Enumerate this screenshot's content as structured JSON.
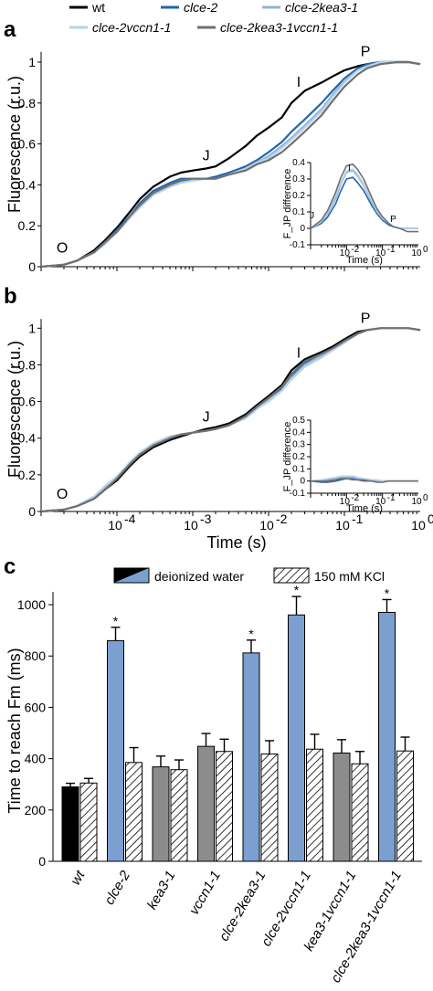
{
  "colors": {
    "wt": "#000000",
    "clce2": "#2166ac",
    "clce2kea3": "#8fb3da",
    "clce2vccn1": "#b9d2ea",
    "clce2kea3vccn1": "#707070",
    "bar_blue": "#7b9fcf",
    "bar_grey": "#8c8c8c",
    "bar_black": "#000000"
  },
  "legend_top": [
    {
      "label": "wt",
      "color_key": "wt",
      "italic": false
    },
    {
      "label": "clce-2",
      "color_key": "clce2",
      "italic": true
    },
    {
      "label": "clce-2kea3-1",
      "color_key": "clce2kea3",
      "italic": true
    },
    {
      "label": "clce-2vccn1-1",
      "color_key": "clce2vccn1",
      "italic": true
    },
    {
      "label": "clce-2kea3-1vccn1-1",
      "color_key": "clce2kea3vccn1",
      "italic": true
    }
  ],
  "panels": {
    "a": "a",
    "b": "b",
    "c": "c"
  },
  "chart_data": [
    {
      "type": "line",
      "panel": "a",
      "xlabel": "",
      "ylabel": "Fluorescence (r.u.)",
      "x_scale": "log",
      "xlim": [
        1e-05,
        1
      ],
      "ylim": [
        0,
        1.05
      ],
      "yticks": [
        "0",
        "0.2",
        "0.4",
        "0.6",
        "0.8",
        "1"
      ],
      "xticks": [],
      "point_labels": [
        {
          "text": "O",
          "x": 1.9e-05,
          "y": 0.07
        },
        {
          "text": "J",
          "x": 0.0015,
          "y": 0.52
        },
        {
          "text": "I",
          "x": 0.025,
          "y": 0.88
        },
        {
          "text": "P",
          "x": 0.19,
          "y": 1.03
        }
      ],
      "x": [
        1e-05,
        2e-05,
        3e-05,
        5e-05,
        7e-05,
        0.0001,
        0.00015,
        0.0002,
        0.0003,
        0.0005,
        0.0007,
        0.001,
        0.0015,
        0.002,
        0.003,
        0.005,
        0.007,
        0.01,
        0.015,
        0.02,
        0.03,
        0.05,
        0.07,
        0.1,
        0.15,
        0.2,
        0.3,
        0.5,
        0.7,
        1
      ],
      "series": [
        {
          "name": "wt",
          "color_key": "wt",
          "values": [
            0.0,
            0.01,
            0.03,
            0.08,
            0.13,
            0.19,
            0.27,
            0.33,
            0.39,
            0.44,
            0.46,
            0.47,
            0.48,
            0.49,
            0.53,
            0.59,
            0.64,
            0.68,
            0.73,
            0.8,
            0.86,
            0.9,
            0.93,
            0.96,
            0.98,
            0.99,
            1.0,
            1.0,
            1.0,
            0.99
          ]
        },
        {
          "name": "clce-2",
          "color_key": "clce2",
          "values": [
            0.0,
            0.01,
            0.03,
            0.07,
            0.12,
            0.18,
            0.25,
            0.31,
            0.37,
            0.41,
            0.43,
            0.43,
            0.43,
            0.44,
            0.46,
            0.49,
            0.52,
            0.56,
            0.61,
            0.66,
            0.72,
            0.8,
            0.86,
            0.92,
            0.97,
            0.99,
            1.0,
            1.0,
            1.0,
            0.99
          ]
        },
        {
          "name": "clce-2kea3-1",
          "color_key": "clce2kea3",
          "values": [
            0.0,
            0.01,
            0.03,
            0.07,
            0.12,
            0.17,
            0.24,
            0.3,
            0.36,
            0.4,
            0.42,
            0.43,
            0.43,
            0.43,
            0.45,
            0.48,
            0.51,
            0.54,
            0.59,
            0.63,
            0.69,
            0.77,
            0.84,
            0.91,
            0.96,
            0.98,
            1.0,
            1.0,
            1.0,
            0.99
          ]
        },
        {
          "name": "clce-2vccn1-1",
          "color_key": "clce2vccn1",
          "values": [
            0.0,
            0.01,
            0.03,
            0.07,
            0.11,
            0.17,
            0.24,
            0.29,
            0.35,
            0.39,
            0.41,
            0.42,
            0.43,
            0.43,
            0.45,
            0.48,
            0.51,
            0.53,
            0.58,
            0.62,
            0.68,
            0.76,
            0.83,
            0.9,
            0.96,
            0.98,
            1.0,
            1.0,
            1.0,
            0.99
          ]
        },
        {
          "name": "clce-2kea3-1vccn1-1",
          "color_key": "clce2kea3vccn1",
          "values": [
            0.0,
            0.01,
            0.03,
            0.07,
            0.12,
            0.17,
            0.25,
            0.3,
            0.36,
            0.4,
            0.42,
            0.43,
            0.43,
            0.43,
            0.45,
            0.47,
            0.5,
            0.52,
            0.56,
            0.6,
            0.66,
            0.74,
            0.81,
            0.88,
            0.94,
            0.97,
            0.99,
            1.0,
            1.0,
            0.99
          ]
        }
      ],
      "inset": {
        "ylabel": "F_JP difference",
        "xlabel": "Time (s)",
        "x_scale": "log",
        "xlim": [
          0.001,
          1
        ],
        "ylim": [
          -0.1,
          0.4
        ],
        "yticks": [
          "-0.1",
          "0",
          "0.1",
          "0.2",
          "0.3",
          "0.4"
        ],
        "xticks": [
          {
            "label": "10",
            "exp": "-2",
            "value": 0.01
          },
          {
            "label": "10",
            "exp": "-1",
            "value": 0.1
          },
          {
            "label": "10",
            "exp": "0",
            "value": 1
          }
        ],
        "point_labels": [
          {
            "text": "J",
            "x": 0.0011,
            "y": 0.06
          },
          {
            "text": "I",
            "x": 0.012,
            "y": 0.35
          },
          {
            "text": "P",
            "x": 0.2,
            "y": 0.04
          }
        ],
        "x": [
          0.001,
          0.002,
          0.003,
          0.005,
          0.007,
          0.01,
          0.015,
          0.02,
          0.03,
          0.05,
          0.07,
          0.1,
          0.15,
          0.2,
          0.3,
          0.5,
          1
        ],
        "series": [
          {
            "name": "clce-2",
            "color_key": "clce2",
            "values": [
              0.0,
              0.03,
              0.07,
              0.15,
              0.23,
              0.3,
              0.31,
              0.28,
              0.23,
              0.14,
              0.09,
              0.05,
              0.02,
              0.01,
              0.0,
              0.0,
              0.0
            ]
          },
          {
            "name": "clce-2kea3-1",
            "color_key": "clce2kea3",
            "values": [
              0.0,
              0.04,
              0.09,
              0.18,
              0.27,
              0.34,
              0.35,
              0.32,
              0.26,
              0.16,
              0.1,
              0.06,
              0.03,
              0.01,
              0.0,
              0.0,
              0.0
            ]
          },
          {
            "name": "clce-2vccn1-1",
            "color_key": "clce2vccn1",
            "values": [
              0.0,
              0.04,
              0.1,
              0.2,
              0.28,
              0.35,
              0.36,
              0.33,
              0.27,
              0.17,
              0.11,
              0.06,
              0.03,
              0.01,
              0.0,
              0.0,
              0.0
            ]
          },
          {
            "name": "clce-2kea3-1vccn1-1",
            "color_key": "clce2kea3vccn1",
            "values": [
              0.0,
              0.05,
              0.11,
              0.22,
              0.31,
              0.38,
              0.39,
              0.36,
              0.3,
              0.19,
              0.12,
              0.07,
              0.03,
              0.01,
              0.0,
              -0.02,
              -0.02
            ]
          }
        ]
      }
    },
    {
      "type": "line",
      "panel": "b",
      "xlabel": "Time (s)",
      "ylabel": "Fluorescence (r.u.)",
      "x_scale": "log",
      "xlim": [
        1e-05,
        1
      ],
      "ylim": [
        0,
        1.05
      ],
      "yticks": [
        "0",
        "0.2",
        "0.4",
        "0.6",
        "0.8",
        "1"
      ],
      "xticks": [
        {
          "label": "10",
          "exp": "-4",
          "value": 0.0001
        },
        {
          "label": "10",
          "exp": "-3",
          "value": 0.001
        },
        {
          "label": "10",
          "exp": "-2",
          "value": 0.01
        },
        {
          "label": "10",
          "exp": "-1",
          "value": 0.1
        },
        {
          "label": "10",
          "exp": "0",
          "value": 1
        }
      ],
      "point_labels": [
        {
          "text": "O",
          "x": 1.9e-05,
          "y": 0.07
        },
        {
          "text": "J",
          "x": 0.0015,
          "y": 0.49
        },
        {
          "text": "I",
          "x": 0.025,
          "y": 0.84
        },
        {
          "text": "P",
          "x": 0.19,
          "y": 1.03
        }
      ],
      "x": [
        1e-05,
        2e-05,
        3e-05,
        5e-05,
        7e-05,
        0.0001,
        0.00015,
        0.0002,
        0.0003,
        0.0005,
        0.0007,
        0.001,
        0.0015,
        0.002,
        0.003,
        0.005,
        0.007,
        0.01,
        0.015,
        0.02,
        0.03,
        0.05,
        0.07,
        0.1,
        0.15,
        0.2,
        0.3,
        0.5,
        0.7,
        1
      ],
      "series": [
        {
          "name": "wt",
          "color_key": "wt",
          "values": [
            0.0,
            0.01,
            0.03,
            0.07,
            0.12,
            0.17,
            0.25,
            0.3,
            0.35,
            0.39,
            0.41,
            0.43,
            0.45,
            0.46,
            0.48,
            0.53,
            0.58,
            0.63,
            0.69,
            0.77,
            0.83,
            0.87,
            0.9,
            0.94,
            0.98,
            0.99,
            1.0,
            1.0,
            1.0,
            0.99
          ]
        },
        {
          "name": "clce-2",
          "color_key": "clce2",
          "values": [
            0.0,
            0.01,
            0.03,
            0.08,
            0.13,
            0.18,
            0.26,
            0.31,
            0.36,
            0.4,
            0.42,
            0.43,
            0.44,
            0.45,
            0.47,
            0.52,
            0.57,
            0.62,
            0.67,
            0.74,
            0.81,
            0.86,
            0.89,
            0.93,
            0.97,
            0.99,
            1.0,
            1.0,
            1.0,
            0.99
          ]
        },
        {
          "name": "clce-2kea3-1",
          "color_key": "clce2kea3",
          "values": [
            0.0,
            0.01,
            0.03,
            0.08,
            0.13,
            0.19,
            0.27,
            0.32,
            0.37,
            0.41,
            0.42,
            0.43,
            0.44,
            0.45,
            0.47,
            0.51,
            0.56,
            0.61,
            0.66,
            0.73,
            0.8,
            0.85,
            0.88,
            0.93,
            0.97,
            0.99,
            1.0,
            1.0,
            1.0,
            0.99
          ]
        },
        {
          "name": "clce-2vccn1-1",
          "color_key": "clce2vccn1",
          "values": [
            0.0,
            0.01,
            0.03,
            0.08,
            0.14,
            0.19,
            0.27,
            0.32,
            0.37,
            0.41,
            0.42,
            0.43,
            0.44,
            0.45,
            0.47,
            0.51,
            0.56,
            0.6,
            0.66,
            0.72,
            0.79,
            0.84,
            0.88,
            0.92,
            0.97,
            0.99,
            1.0,
            1.0,
            1.0,
            0.99
          ]
        },
        {
          "name": "clce-2kea3-1vccn1-1",
          "color_key": "clce2kea3vccn1",
          "values": [
            0.0,
            0.01,
            0.03,
            0.07,
            0.12,
            0.18,
            0.26,
            0.31,
            0.36,
            0.4,
            0.42,
            0.43,
            0.44,
            0.45,
            0.47,
            0.52,
            0.57,
            0.62,
            0.68,
            0.75,
            0.82,
            0.86,
            0.89,
            0.93,
            0.97,
            0.99,
            1.0,
            1.0,
            1.0,
            0.99
          ]
        }
      ],
      "inset": {
        "ylabel": "F_JP difference",
        "xlabel": "Time (s)",
        "x_scale": "log",
        "xlim": [
          0.001,
          1
        ],
        "ylim": [
          -0.1,
          0.5
        ],
        "yticks": [
          "-0.1",
          "0",
          "0.1",
          "0.2",
          "0.3",
          "0.4",
          "0.5"
        ],
        "xticks": [
          {
            "label": "10",
            "exp": "-2",
            "value": 0.01
          },
          {
            "label": "10",
            "exp": "-1",
            "value": 0.1
          },
          {
            "label": "10",
            "exp": "0",
            "value": 1
          }
        ],
        "point_labels": [],
        "x": [
          0.001,
          0.002,
          0.003,
          0.005,
          0.007,
          0.01,
          0.015,
          0.02,
          0.03,
          0.05,
          0.07,
          0.1,
          0.15,
          0.2,
          0.3,
          0.5,
          1
        ],
        "series": [
          {
            "name": "clce-2",
            "color_key": "clce2",
            "values": [
              0.0,
              -0.01,
              -0.01,
              0.0,
              0.01,
              0.02,
              0.02,
              0.01,
              0.01,
              0.0,
              0.0,
              0.0,
              0.0,
              0.0,
              0.0,
              0.0,
              0.0
            ]
          },
          {
            "name": "clce-2kea3-1",
            "color_key": "clce2kea3",
            "values": [
              0.0,
              0.0,
              0.01,
              0.02,
              0.03,
              0.03,
              0.03,
              0.02,
              0.02,
              0.01,
              0.0,
              0.0,
              0.0,
              0.0,
              0.0,
              0.0,
              0.0
            ]
          },
          {
            "name": "clce-2vccn1-1",
            "color_key": "clce2vccn1",
            "values": [
              0.0,
              0.01,
              0.02,
              0.03,
              0.04,
              0.04,
              0.04,
              0.03,
              0.02,
              0.01,
              0.01,
              0.0,
              0.0,
              0.0,
              0.0,
              0.0,
              0.0
            ]
          },
          {
            "name": "clce-2kea3-1vccn1-1",
            "color_key": "clce2kea3vccn1",
            "values": [
              0.0,
              0.0,
              0.0,
              0.01,
              0.02,
              0.02,
              0.01,
              0.01,
              0.0,
              0.0,
              -0.01,
              -0.01,
              0.0,
              0.0,
              0.0,
              0.0,
              0.0
            ]
          }
        ]
      }
    },
    {
      "type": "bar",
      "panel": "c",
      "xlabel": "",
      "ylabel": "Time to reach Fm (ms)",
      "ylim": [
        0,
        1050
      ],
      "yticks": [
        "0",
        "200",
        "400",
        "600",
        "800",
        "1000"
      ],
      "legend": [
        {
          "label": "deionized water",
          "style": "split-solid"
        },
        {
          "label": "150 mM KCl",
          "style": "hatched"
        }
      ],
      "categories": [
        "wt",
        "clce-2",
        "kea3-1",
        "vccn1-1",
        "clce-2kea3-1",
        "clce-2vccn1-1",
        "kea3-1vccn1-1",
        "clce-2kea3-1vccn1-1"
      ],
      "bar_fill_keys": [
        "bar_black",
        "bar_blue",
        "bar_grey",
        "bar_grey",
        "bar_blue",
        "bar_blue",
        "bar_grey",
        "bar_blue"
      ],
      "series": [
        {
          "name": "deionized water",
          "values": [
            290,
            860,
            368,
            448,
            812,
            960,
            422,
            970
          ],
          "errors": [
            14,
            52,
            42,
            50,
            50,
            72,
            52,
            50
          ],
          "significant": [
            "",
            "*",
            "",
            "",
            "*",
            "*",
            "",
            "*"
          ]
        },
        {
          "name": "150 mM KCl",
          "values": [
            305,
            385,
            357,
            428,
            418,
            437,
            380,
            430
          ],
          "errors": [
            18,
            58,
            38,
            48,
            52,
            58,
            48,
            54
          ]
        }
      ]
    }
  ]
}
